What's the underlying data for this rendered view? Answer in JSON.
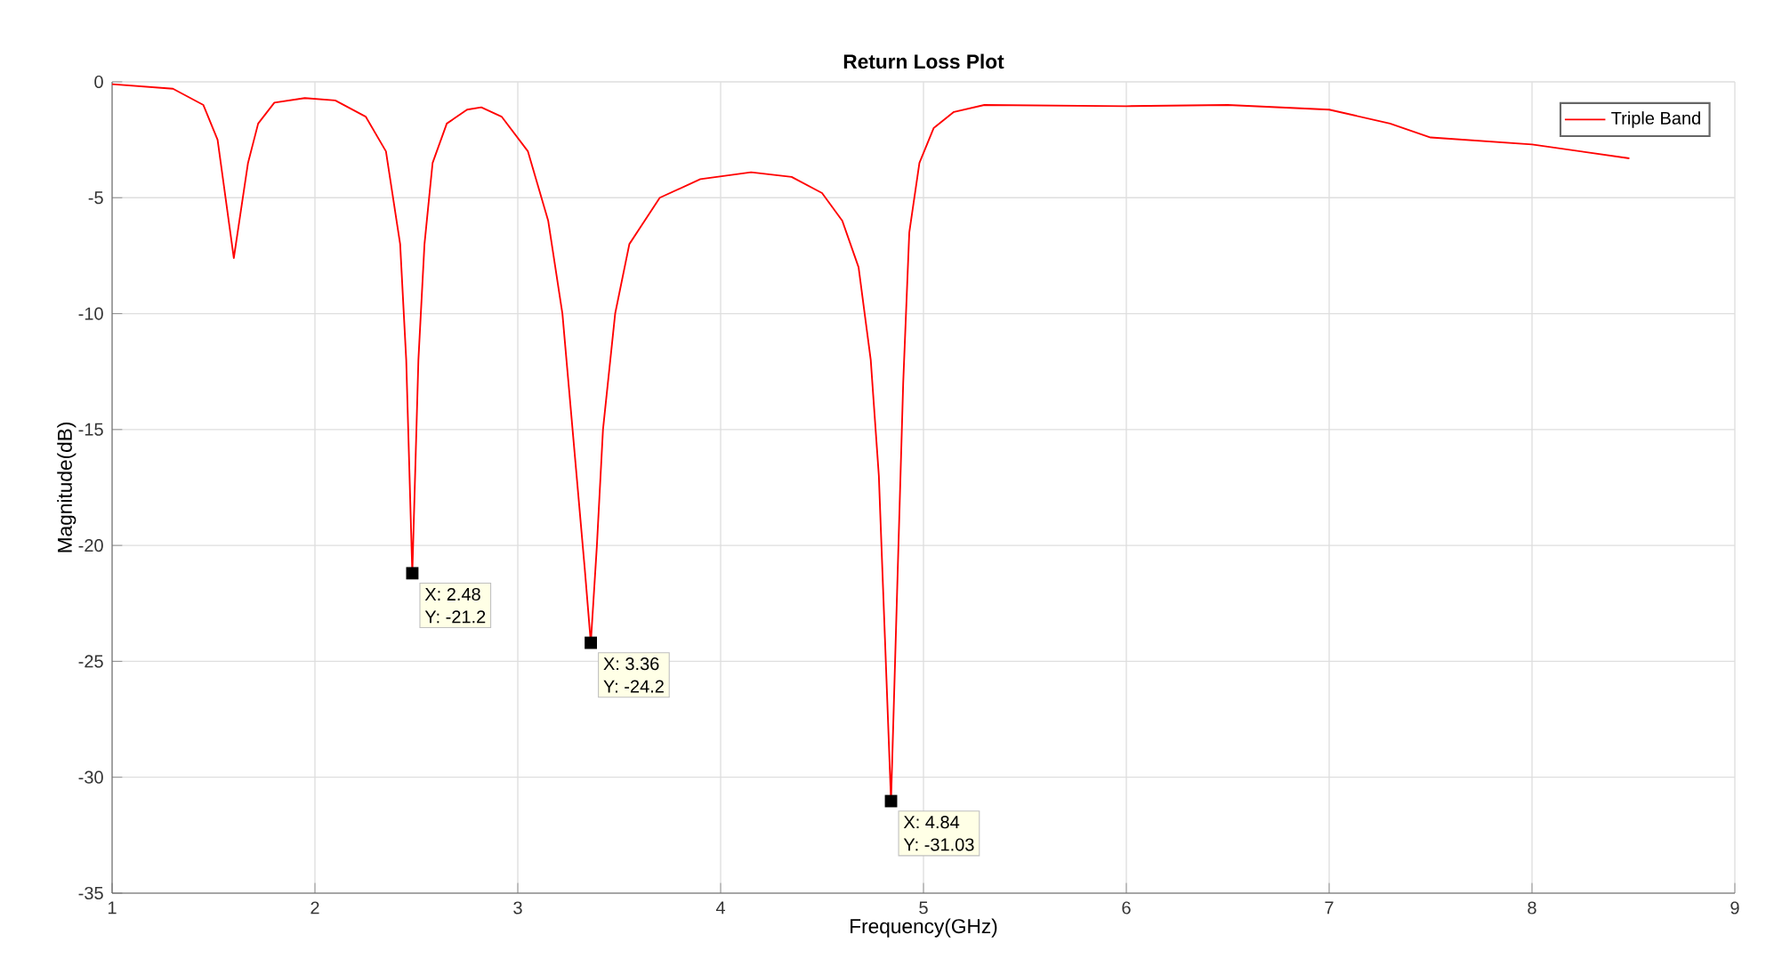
{
  "chart_data": {
    "type": "line",
    "title": "Return Loss Plot",
    "xlabel": "Frequency(GHz)",
    "ylabel": "Magnitude(dB)",
    "x": [
      1.0,
      1.3,
      1.45,
      1.52,
      1.6,
      1.67,
      1.72,
      1.8,
      1.95,
      2.1,
      2.25,
      2.35,
      2.42,
      2.45,
      2.48,
      2.51,
      2.54,
      2.58,
      2.65,
      2.75,
      2.82,
      2.92,
      3.05,
      3.15,
      3.22,
      3.28,
      3.33,
      3.36,
      3.39,
      3.42,
      3.48,
      3.55,
      3.7,
      3.9,
      4.15,
      4.35,
      4.5,
      4.6,
      4.68,
      4.74,
      4.78,
      4.81,
      4.84,
      4.87,
      4.9,
      4.93,
      4.98,
      5.05,
      5.15,
      5.3,
      6.0,
      6.5,
      7.0,
      7.3,
      7.5,
      8.0,
      8.48
    ],
    "series": [
      {
        "name": "Triple Band",
        "color": "#ff0000",
        "values": [
          -0.1,
          -0.3,
          -1.0,
          -2.5,
          -7.6,
          -3.5,
          -1.8,
          -0.9,
          -0.7,
          -0.8,
          -1.5,
          -3.0,
          -7,
          -12,
          -21.2,
          -12,
          -7,
          -3.5,
          -1.8,
          -1.2,
          -1.1,
          -1.5,
          -3,
          -6,
          -10,
          -16,
          -21,
          -24.2,
          -20,
          -15,
          -10,
          -7,
          -5,
          -4.2,
          -3.9,
          -4.1,
          -4.8,
          -6,
          -8,
          -12,
          -17,
          -24,
          -31.03,
          -22,
          -13,
          -6.5,
          -3.5,
          -2,
          -1.3,
          -1.0,
          -1.05,
          -1.0,
          -1.2,
          -1.8,
          -2.4,
          -2.7,
          -3.3
        ]
      }
    ],
    "xlim": [
      1,
      9
    ],
    "ylim": [
      -35,
      0
    ],
    "xticks": [
      1,
      2,
      3,
      4,
      5,
      6,
      7,
      8,
      9
    ],
    "yticks": [
      -35,
      -30,
      -25,
      -20,
      -15,
      -10,
      -5,
      0
    ],
    "grid": true,
    "legend": "top right",
    "marker": "none",
    "line_style": "solid",
    "annotations": [
      {
        "text": "X: 2.48",
        "x": 2.48,
        "y": -21.2
      },
      {
        "text": "Y: -21.2",
        "x": 2.48,
        "y": -21.2
      },
      {
        "text": "X: 3.36",
        "x": 3.36,
        "y": -24.2
      },
      {
        "text": "Y: -24.2",
        "x": 3.36,
        "y": -24.2
      },
      {
        "text": "X: 4.84",
        "x": 4.84,
        "y": -31.03
      },
      {
        "text": "Y: -31.03",
        "x": 4.84,
        "y": -31.03
      }
    ]
  }
}
